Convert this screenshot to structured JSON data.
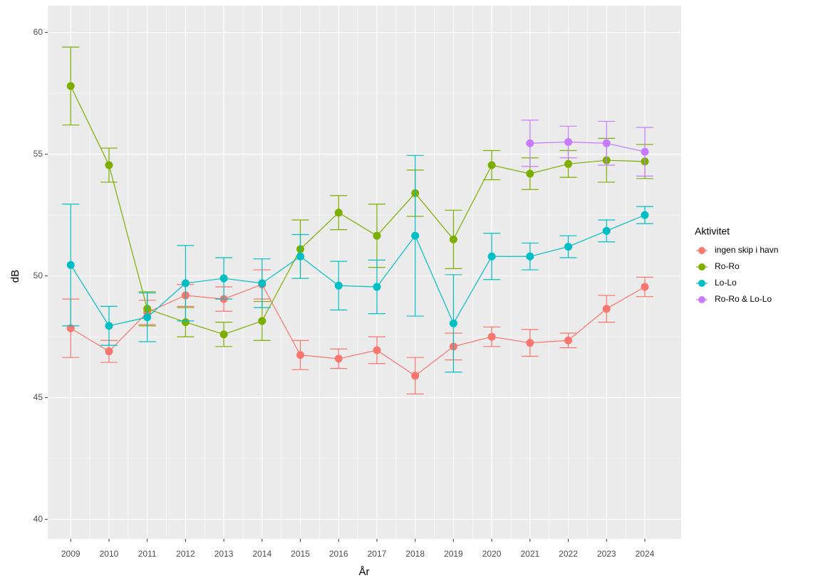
{
  "chart_data": {
    "type": "line",
    "x_label": "År",
    "y_label": "dB",
    "legend_title": "Aktivitet",
    "x": [
      2009,
      2010,
      2011,
      2012,
      2013,
      2014,
      2015,
      2016,
      2017,
      2018,
      2019,
      2020,
      2021,
      2022,
      2023,
      2024
    ],
    "series": [
      {
        "name": "ingen skip i havn",
        "color": "#F8766D",
        "values": [
          47.85,
          46.9,
          48.5,
          49.2,
          49.05,
          49.65,
          46.75,
          46.6,
          46.95,
          45.9,
          47.1,
          47.5,
          47.25,
          47.35,
          48.65,
          49.55
        ],
        "errors": [
          1.2,
          0.45,
          0.5,
          0.45,
          0.5,
          0.6,
          0.6,
          0.4,
          0.55,
          0.75,
          0.55,
          0.4,
          0.55,
          0.3,
          0.55,
          0.4
        ]
      },
      {
        "name": "Ro-Ro",
        "color": "#7CAE00",
        "values": [
          57.8,
          54.55,
          48.65,
          48.1,
          47.6,
          48.15,
          51.1,
          52.6,
          51.65,
          53.4,
          51.5,
          54.55,
          54.2,
          54.6,
          54.75,
          54.7
        ],
        "errors": [
          1.6,
          0.7,
          0.7,
          0.6,
          0.5,
          0.8,
          1.2,
          0.7,
          1.3,
          0.95,
          1.2,
          0.6,
          0.65,
          0.55,
          0.9,
          0.7
        ]
      },
      {
        "name": "Lo-Lo",
        "color": "#00BFC4",
        "values": [
          50.45,
          47.95,
          48.3,
          49.7,
          49.9,
          49.7,
          50.8,
          49.6,
          49.55,
          51.65,
          48.05,
          50.8,
          50.8,
          51.2,
          51.85,
          52.5
        ],
        "errors": [
          2.5,
          0.8,
          1.0,
          1.55,
          0.85,
          1.0,
          0.9,
          1.0,
          1.1,
          3.3,
          2.0,
          0.95,
          0.55,
          0.45,
          0.45,
          0.35
        ]
      },
      {
        "name": "Ro-Ro & Lo-Lo",
        "color": "#C77CFF",
        "values": [
          null,
          null,
          null,
          null,
          null,
          null,
          null,
          null,
          null,
          null,
          null,
          null,
          55.45,
          55.5,
          55.45,
          55.1
        ],
        "errors": [
          null,
          null,
          null,
          null,
          null,
          null,
          null,
          null,
          null,
          null,
          null,
          null,
          0.95,
          0.65,
          0.9,
          1.0
        ]
      }
    ],
    "xlim": [
      2008.4,
      2024.95
    ],
    "xticks": [
      2009,
      2010,
      2011,
      2012,
      2013,
      2014,
      2015,
      2016,
      2017,
      2018,
      2019,
      2020,
      2021,
      2022,
      2023,
      2024
    ],
    "ylim": [
      39.2,
      61.1
    ],
    "yticks": [
      40,
      45,
      50,
      55,
      60
    ],
    "grid": true,
    "legend": "right"
  }
}
